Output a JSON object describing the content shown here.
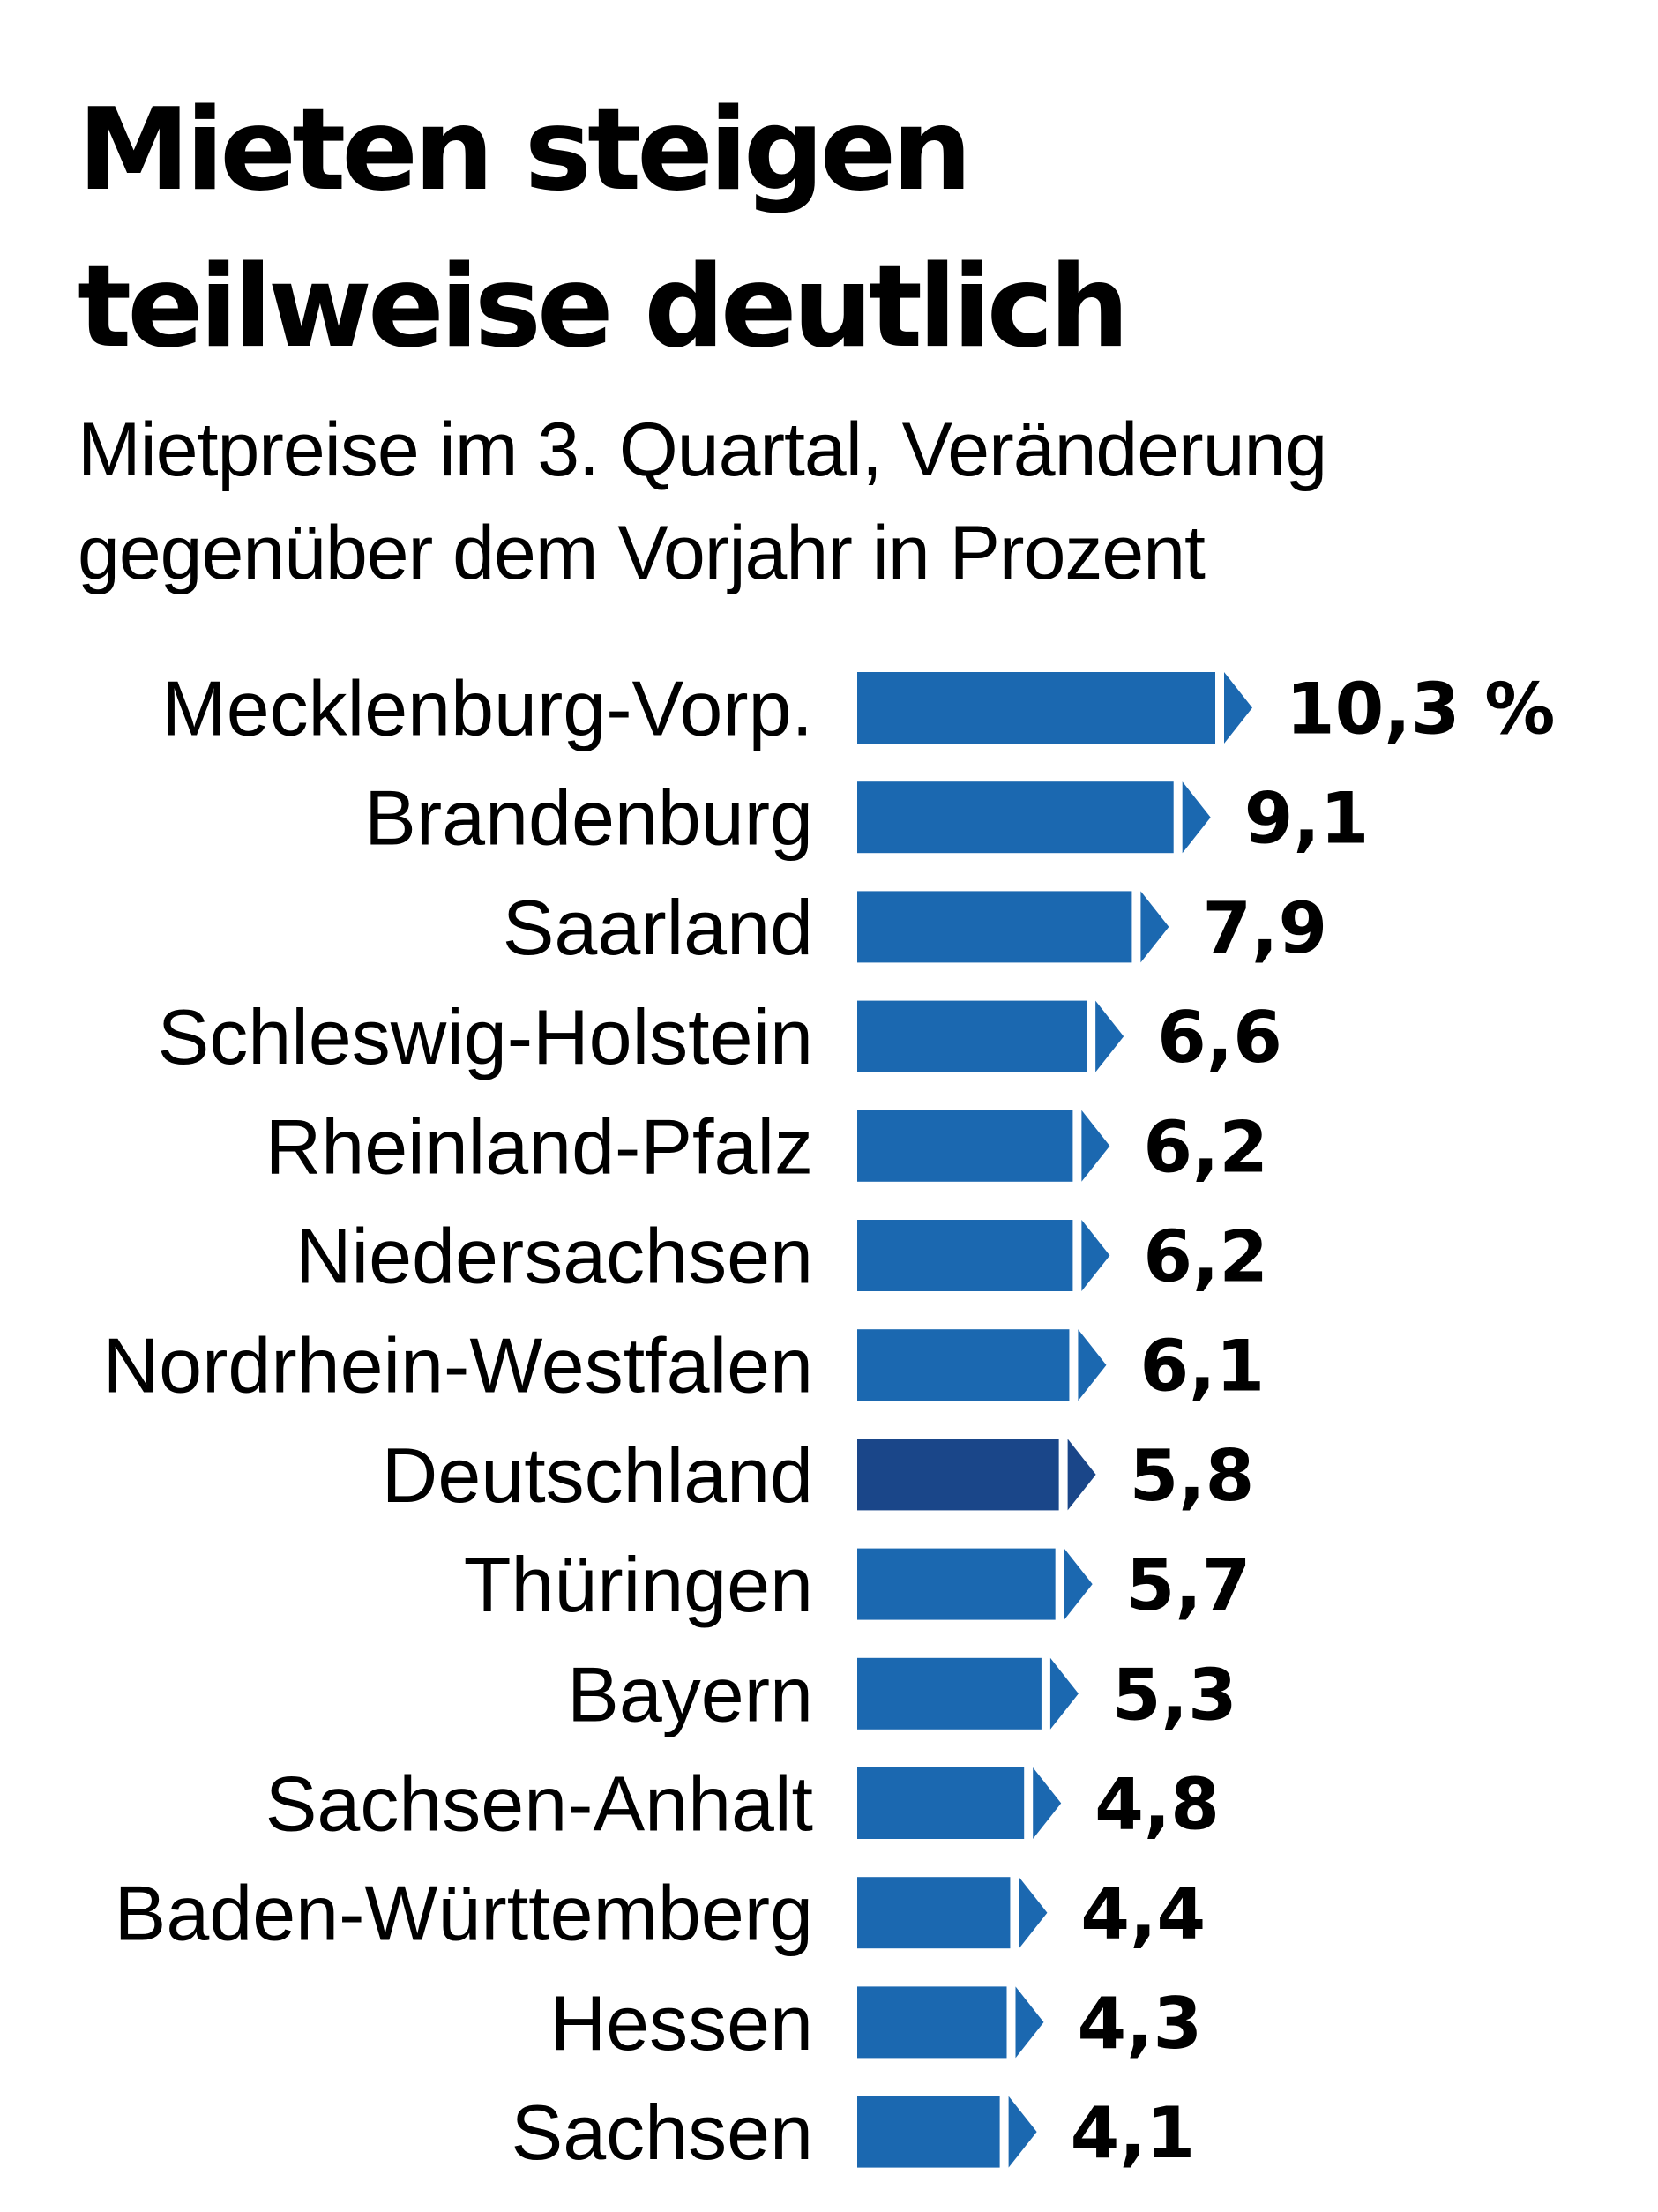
{
  "chart_data": {
    "type": "bar",
    "orientation": "horizontal",
    "title": "Mieten steigen teilweise deutlich",
    "title_lines": [
      "Mieten steigen",
      "teilweise deutlich"
    ],
    "subtitle": "Mietpreise im 3. Quartal, Veränderung gegenüber dem Vorjahr in Prozent",
    "subtitle_lines": [
      "Mietpreise im 3. Quartal, Veränderung",
      "gegenüber dem Vorjahr in Prozent"
    ],
    "xlabel": "",
    "ylabel": "",
    "unit": "%",
    "xlim": [
      0,
      10.3
    ],
    "grid": false,
    "legend": "none",
    "categories": [
      "Mecklenburg-Vorp.",
      "Brandenburg",
      "Saarland",
      "Schleswig-Holstein",
      "Rheinland-Pfalz",
      "Niedersachsen",
      "Nordrhein-Westfalen",
      "Deutschland",
      "Thüringen",
      "Bayern",
      "Sachsen-Anhalt",
      "Baden-Württemberg",
      "Hessen",
      "Sachsen"
    ],
    "values": [
      10.3,
      9.1,
      7.9,
      6.6,
      6.2,
      6.2,
      6.1,
      5.8,
      5.7,
      5.3,
      4.8,
      4.4,
      4.3,
      4.1
    ],
    "value_labels": [
      "10,3 %",
      "9,1",
      "7,9",
      "6,6",
      "6,2",
      "6,2",
      "6,1",
      "5,8",
      "5,7",
      "5,3",
      "4,8",
      "4,4",
      "4,3",
      "4,1"
    ],
    "highlight": "Deutschland",
    "colors": {
      "bar": "#1b68b0",
      "highlight": "#1a4689",
      "text": "#000000"
    }
  }
}
